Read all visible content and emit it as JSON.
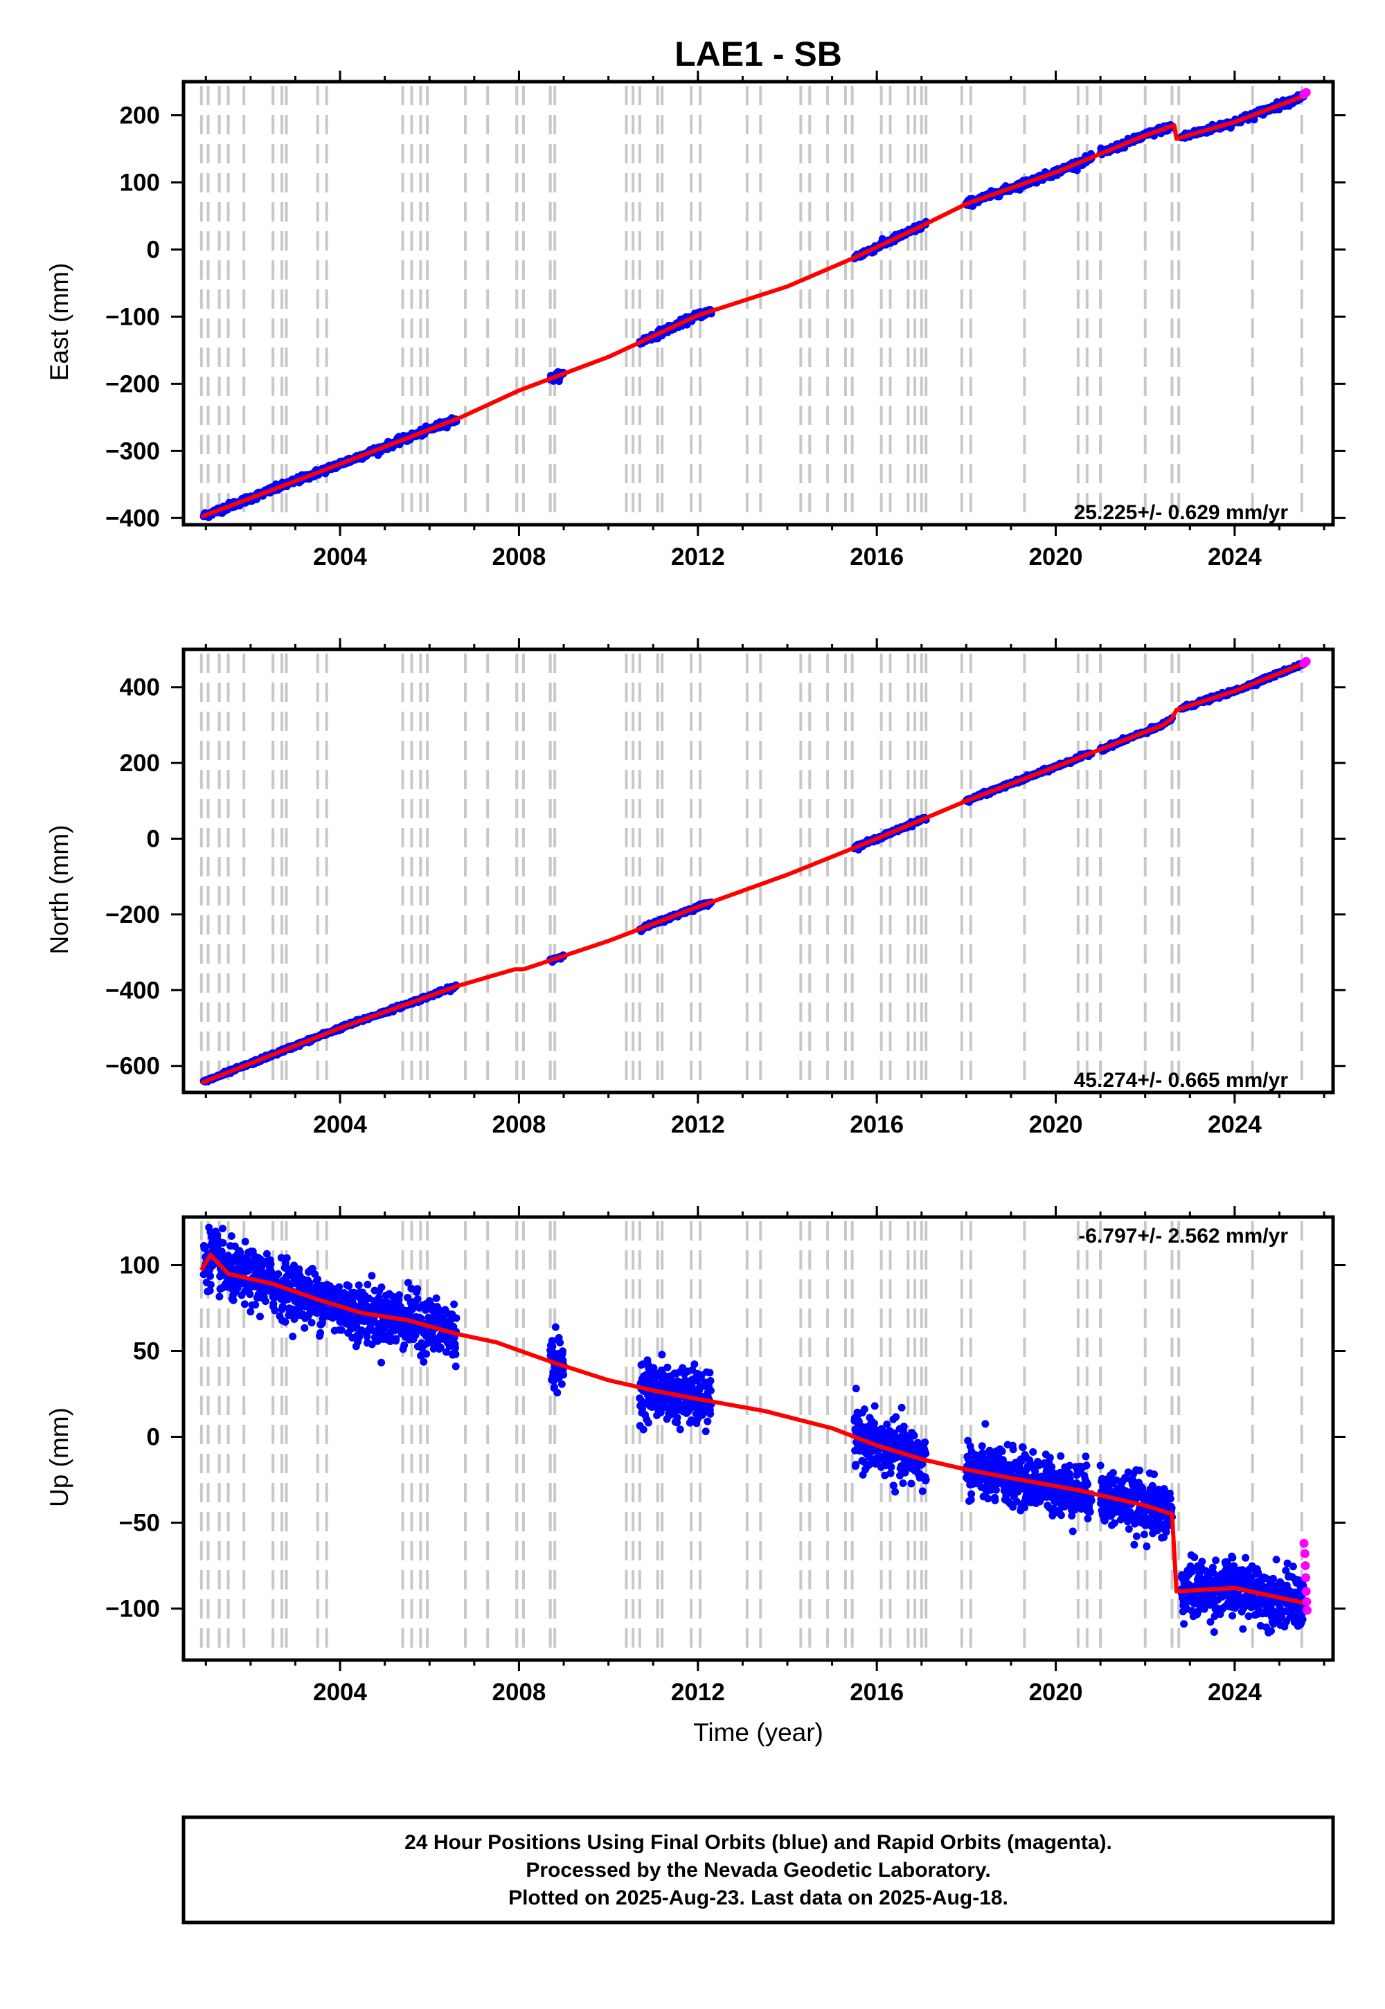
{
  "title": "LAE1 - SB",
  "xlabel": "Time (year)",
  "footer": {
    "line1": "24 Hour Positions Using Final Orbits (blue) and Rapid Orbits (magenta).",
    "line2": "Processed by the Nevada Geodetic Laboratory.",
    "line3": "Plotted on 2025-Aug-23. Last data on 2025-Aug-18."
  },
  "colors": {
    "final_orbits": "#0000ff",
    "rapid_orbits": "#ff00ff",
    "model": "#ff0000",
    "event_lines": "#c8c8c8"
  },
  "chart_data": [
    {
      "type": "scatter",
      "component": "east",
      "ylabel": "East (mm)",
      "rate_label": "25.225+/- 0.629 mm/yr",
      "xlim": [
        2000.5,
        2026.2
      ],
      "ylim": [
        -410,
        250
      ],
      "xticks": [
        2004,
        2008,
        2012,
        2016,
        2020,
        2024
      ],
      "yticks": [
        -400,
        -300,
        -200,
        -100,
        0,
        100,
        200
      ],
      "ytick_labels": [
        "−400",
        "−300",
        "−200",
        "−100",
        "0",
        "100",
        "200"
      ],
      "data_segments": [
        [
          2000.95,
          2006.6
        ],
        [
          2008.7,
          2009.0
        ],
        [
          2010.7,
          2012.3
        ],
        [
          2015.5,
          2017.1
        ],
        [
          2018.0,
          2020.8
        ],
        [
          2021.0,
          2022.6
        ],
        [
          2022.8,
          2025.55
        ]
      ],
      "model_points": [
        [
          2000.9,
          -398
        ],
        [
          2003.0,
          -345
        ],
        [
          2005.5,
          -281
        ],
        [
          2006.7,
          -250
        ],
        [
          2008.0,
          -210
        ],
        [
          2010.0,
          -160
        ],
        [
          2012.0,
          -98
        ],
        [
          2014.0,
          -55
        ],
        [
          2015.5,
          -12
        ],
        [
          2017.0,
          35
        ],
        [
          2018.0,
          68
        ],
        [
          2020.0,
          115
        ],
        [
          2022.0,
          170
        ],
        [
          2022.65,
          185
        ],
        [
          2022.7,
          165
        ],
        [
          2024.0,
          190
        ],
        [
          2025.6,
          230
        ]
      ],
      "rapid_points": [
        [
          2025.55,
          231
        ],
        [
          2025.6,
          234
        ]
      ]
    },
    {
      "type": "scatter",
      "component": "north",
      "ylabel": "North (mm)",
      "rate_label": "45.274+/- 0.665 mm/yr",
      "xlim": [
        2000.5,
        2026.2
      ],
      "ylim": [
        -670,
        500
      ],
      "xticks": [
        2004,
        2008,
        2012,
        2016,
        2020,
        2024
      ],
      "yticks": [
        -600,
        -400,
        -200,
        0,
        200,
        400
      ],
      "ytick_labels": [
        "−600",
        "−400",
        "−200",
        "0",
        "200",
        "400"
      ],
      "data_segments": [
        [
          2000.95,
          2006.6
        ],
        [
          2008.7,
          2009.0
        ],
        [
          2010.7,
          2012.3
        ],
        [
          2015.5,
          2017.1
        ],
        [
          2018.0,
          2020.8
        ],
        [
          2021.0,
          2022.6
        ],
        [
          2022.8,
          2025.55
        ]
      ],
      "model_points": [
        [
          2000.9,
          -645
        ],
        [
          2004.0,
          -500
        ],
        [
          2006.6,
          -390
        ],
        [
          2007.9,
          -345
        ],
        [
          2008.1,
          -345
        ],
        [
          2010.0,
          -270
        ],
        [
          2012.0,
          -180
        ],
        [
          2014.0,
          -95
        ],
        [
          2016.0,
          0
        ],
        [
          2018.0,
          100
        ],
        [
          2020.0,
          190
        ],
        [
          2022.4,
          300
        ],
        [
          2022.6,
          318
        ],
        [
          2022.7,
          340
        ],
        [
          2024.0,
          390
        ],
        [
          2025.6,
          465
        ]
      ],
      "rapid_points": [
        [
          2025.55,
          463
        ],
        [
          2025.6,
          468
        ]
      ]
    },
    {
      "type": "scatter",
      "component": "up",
      "ylabel": "Up (mm)",
      "rate_label": "-6.797+/- 2.562 mm/yr",
      "xlim": [
        2000.5,
        2026.2
      ],
      "ylim": [
        -130,
        128
      ],
      "xticks": [
        2004,
        2008,
        2012,
        2016,
        2020,
        2024
      ],
      "yticks": [
        -100,
        -50,
        0,
        50,
        100
      ],
      "ytick_labels": [
        "−100",
        "−50",
        "0",
        "50",
        "100"
      ],
      "data_segments": [
        [
          2000.95,
          2006.6
        ],
        [
          2008.7,
          2009.0
        ],
        [
          2010.7,
          2012.3
        ],
        [
          2015.5,
          2017.1
        ],
        [
          2018.0,
          2020.8
        ],
        [
          2021.0,
          2022.6
        ],
        [
          2022.8,
          2025.55
        ]
      ],
      "model_points": [
        [
          2000.9,
          97
        ],
        [
          2001.1,
          106
        ],
        [
          2001.5,
          95
        ],
        [
          2002.5,
          89
        ],
        [
          2003.5,
          80
        ],
        [
          2004.5,
          72
        ],
        [
          2005.5,
          68
        ],
        [
          2006.6,
          60
        ],
        [
          2007.5,
          55
        ],
        [
          2008.8,
          43
        ],
        [
          2010.0,
          33
        ],
        [
          2011.0,
          27
        ],
        [
          2012.0,
          22
        ],
        [
          2013.5,
          15
        ],
        [
          2015.0,
          5
        ],
        [
          2016.0,
          -5
        ],
        [
          2017.0,
          -13
        ],
        [
          2018.0,
          -19
        ],
        [
          2019.0,
          -24
        ],
        [
          2020.5,
          -31
        ],
        [
          2022.0,
          -40
        ],
        [
          2022.6,
          -45
        ],
        [
          2022.7,
          -90
        ],
        [
          2024.0,
          -88
        ],
        [
          2025.6,
          -97
        ]
      ],
      "rapid_points": [
        [
          2025.55,
          -62
        ],
        [
          2025.57,
          -68
        ],
        [
          2025.58,
          -75
        ],
        [
          2025.59,
          -82
        ],
        [
          2025.6,
          -90
        ],
        [
          2025.61,
          -96
        ],
        [
          2025.62,
          -101
        ]
      ]
    }
  ],
  "event_lines": {
    "years": [
      2000.9,
      2001.05,
      2001.3,
      2001.5,
      2001.85,
      2002.5,
      2002.7,
      2002.8,
      2003.5,
      2003.7,
      2005.4,
      2005.6,
      2005.8,
      2005.95,
      2006.8,
      2007.3,
      2007.95,
      2008.1,
      2008.7,
      2008.8,
      2010.4,
      2010.55,
      2010.7,
      2011.1,
      2011.2,
      2011.85,
      2012.05,
      2013.1,
      2013.4,
      2014.3,
      2014.5,
      2014.9,
      2015.3,
      2015.45,
      2016.1,
      2016.3,
      2016.7,
      2016.85,
      2017.0,
      2017.1,
      2017.9,
      2018.1,
      2019.3,
      2020.5,
      2020.7,
      2021.0,
      2022.0,
      2022.6,
      2022.75,
      2024.4,
      2025.5
    ]
  }
}
